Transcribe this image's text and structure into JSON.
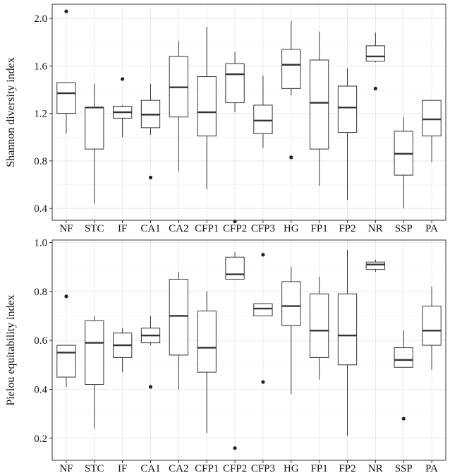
{
  "chart_data": [
    {
      "type": "box",
      "ylabel": "Shannon diversity index",
      "ylim": [
        0.3,
        2.12
      ],
      "yticks": [
        0.4,
        0.8,
        1.2,
        1.6,
        2.0
      ],
      "ytick_labels": [
        "0.4",
        "0.8",
        "1.2",
        "1.6",
        "2.0"
      ],
      "grid": true,
      "categories": [
        "NF",
        "STC",
        "IF",
        "CA1",
        "CA2",
        "CFP1",
        "CFP2",
        "CFP3",
        "HG",
        "FP1",
        "FP2",
        "NR",
        "SSP",
        "PA"
      ],
      "boxes": [
        {
          "min": 1.03,
          "q1": 1.2,
          "median": 1.37,
          "q3": 1.46,
          "max": 1.46,
          "outliers": [
            2.06
          ]
        },
        {
          "min": 0.44,
          "q1": 0.9,
          "median": 1.25,
          "q3": 1.25,
          "max": 1.45,
          "outliers": []
        },
        {
          "min": 1.0,
          "q1": 1.16,
          "median": 1.21,
          "q3": 1.26,
          "max": 1.27,
          "outliers": [
            1.49
          ]
        },
        {
          "min": 1.02,
          "q1": 1.08,
          "median": 1.19,
          "q3": 1.31,
          "max": 1.45,
          "outliers": [
            0.66
          ]
        },
        {
          "min": 0.71,
          "q1": 1.17,
          "median": 1.42,
          "q3": 1.68,
          "max": 1.81,
          "outliers": []
        },
        {
          "min": 0.56,
          "q1": 1.01,
          "median": 1.21,
          "q3": 1.51,
          "max": 1.93,
          "outliers": []
        },
        {
          "min": 1.21,
          "q1": 1.29,
          "median": 1.53,
          "q3": 1.62,
          "max": 1.72,
          "outliers": [
            0.29
          ]
        },
        {
          "min": 0.91,
          "q1": 1.03,
          "median": 1.14,
          "q3": 1.27,
          "max": 1.52,
          "outliers": []
        },
        {
          "min": 1.35,
          "q1": 1.41,
          "median": 1.61,
          "q3": 1.74,
          "max": 1.98,
          "outliers": [
            0.83
          ]
        },
        {
          "min": 0.59,
          "q1": 0.9,
          "median": 1.29,
          "q3": 1.65,
          "max": 1.89,
          "outliers": []
        },
        {
          "min": 0.47,
          "q1": 1.04,
          "median": 1.25,
          "q3": 1.43,
          "max": 1.58,
          "outliers": []
        },
        {
          "min": 1.63,
          "q1": 1.64,
          "median": 1.68,
          "q3": 1.77,
          "max": 1.88,
          "outliers": [
            1.41
          ]
        },
        {
          "min": 0.4,
          "q1": 0.68,
          "median": 0.86,
          "q3": 1.05,
          "max": 1.17,
          "outliers": []
        },
        {
          "min": 0.79,
          "q1": 1.01,
          "median": 1.15,
          "q3": 1.31,
          "max": 1.31,
          "outliers": []
        }
      ]
    },
    {
      "type": "box",
      "ylabel": "Pielou equitability index",
      "ylim": [
        0.11,
        1.01
      ],
      "yticks": [
        0.2,
        0.4,
        0.6,
        0.8,
        1.0
      ],
      "ytick_labels": [
        "0.2",
        "0.4",
        "0.6",
        "0.8",
        "1.0"
      ],
      "grid": true,
      "categories": [
        "NF",
        "STC",
        "IF",
        "CA1",
        "CA2",
        "CFP1",
        "CFP2",
        "CFP3",
        "HG",
        "FP1",
        "FP2",
        "NR",
        "SSP",
        "PA"
      ],
      "boxes": [
        {
          "min": 0.41,
          "q1": 0.45,
          "median": 0.55,
          "q3": 0.58,
          "max": 0.58,
          "outliers": [
            0.78
          ]
        },
        {
          "min": 0.24,
          "q1": 0.42,
          "median": 0.59,
          "q3": 0.68,
          "max": 0.7,
          "outliers": []
        },
        {
          "min": 0.47,
          "q1": 0.53,
          "median": 0.58,
          "q3": 0.63,
          "max": 0.65,
          "outliers": []
        },
        {
          "min": 0.58,
          "q1": 0.59,
          "median": 0.62,
          "q3": 0.65,
          "max": 0.7,
          "outliers": [
            0.41
          ]
        },
        {
          "min": 0.4,
          "q1": 0.54,
          "median": 0.7,
          "q3": 0.85,
          "max": 0.88,
          "outliers": []
        },
        {
          "min": 0.22,
          "q1": 0.47,
          "median": 0.57,
          "q3": 0.72,
          "max": 0.8,
          "outliers": []
        },
        {
          "min": 0.85,
          "q1": 0.85,
          "median": 0.87,
          "q3": 0.94,
          "max": 0.96,
          "outliers": [
            0.16
          ]
        },
        {
          "min": 0.7,
          "q1": 0.7,
          "median": 0.73,
          "q3": 0.75,
          "max": 0.75,
          "outliers": [
            0.95,
            0.43
          ]
        },
        {
          "min": 0.38,
          "q1": 0.66,
          "median": 0.74,
          "q3": 0.84,
          "max": 0.9,
          "outliers": []
        },
        {
          "min": 0.44,
          "q1": 0.53,
          "median": 0.64,
          "q3": 0.79,
          "max": 0.86,
          "outliers": []
        },
        {
          "min": 0.21,
          "q1": 0.5,
          "median": 0.62,
          "q3": 0.79,
          "max": 0.97,
          "outliers": []
        },
        {
          "min": 0.88,
          "q1": 0.89,
          "median": 0.91,
          "q3": 0.92,
          "max": 0.93,
          "outliers": []
        },
        {
          "min": 0.49,
          "q1": 0.49,
          "median": 0.52,
          "q3": 0.57,
          "max": 0.64,
          "outliers": [
            0.28
          ]
        },
        {
          "min": 0.48,
          "q1": 0.58,
          "median": 0.64,
          "q3": 0.74,
          "max": 0.82,
          "outliers": []
        }
      ]
    }
  ]
}
